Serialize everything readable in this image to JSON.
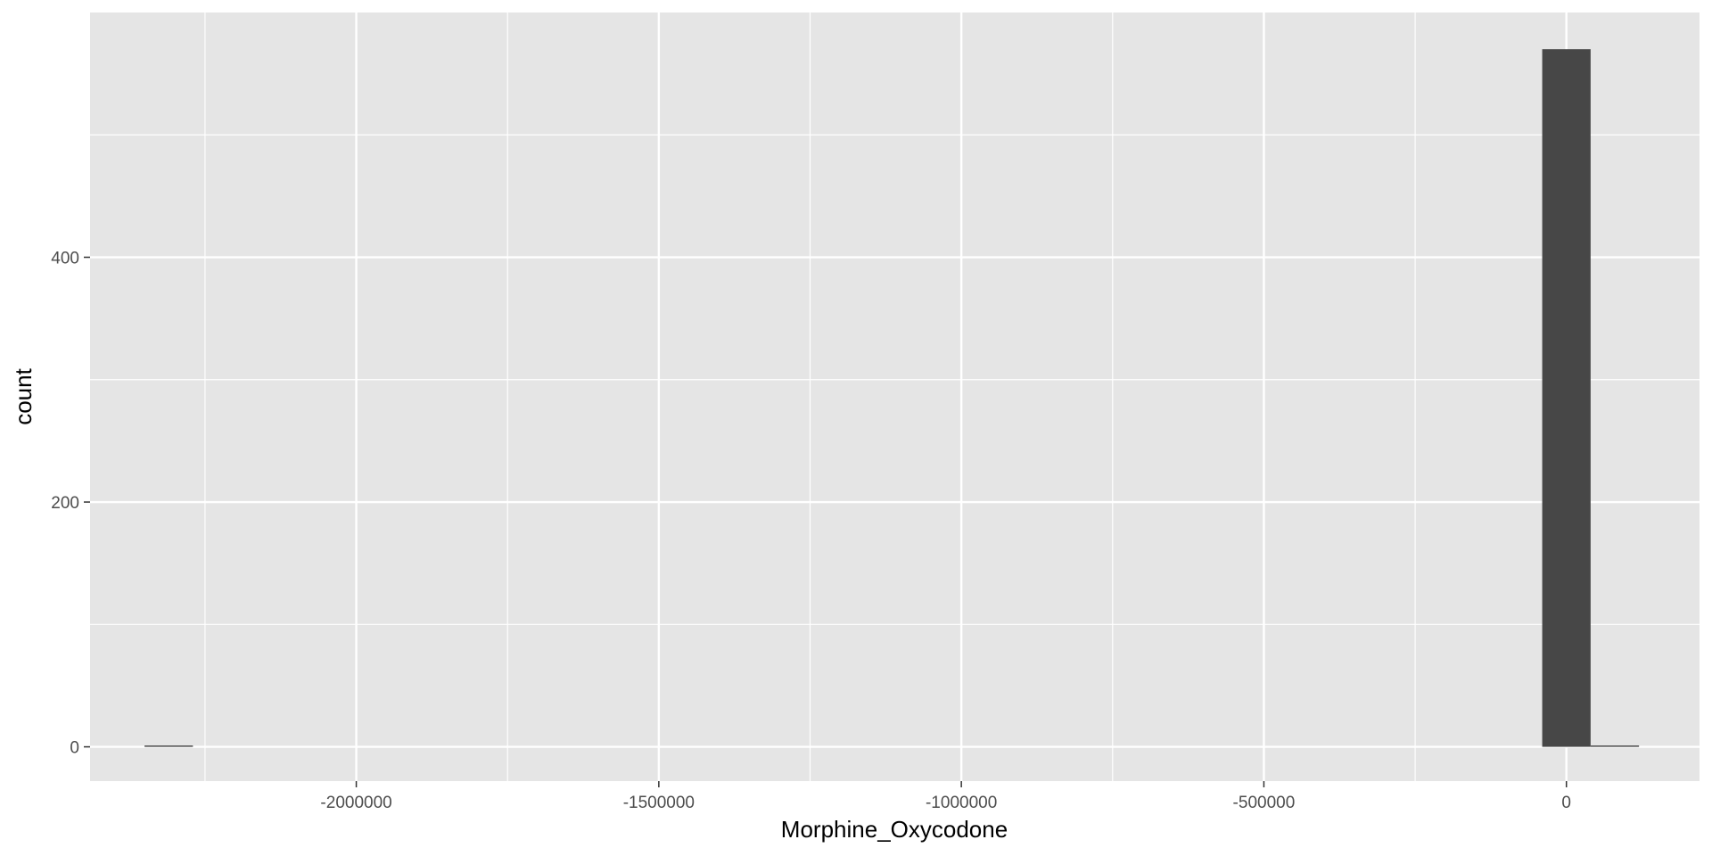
{
  "chart_data": {
    "type": "bar",
    "subtype": "histogram",
    "xlabel": "Morphine_Oxycodone",
    "ylabel": "count",
    "xlim": [
      -2440000,
      220000
    ],
    "ylim": [
      -28,
      600
    ],
    "x_ticks": [
      {
        "value": -2000000,
        "label": "-2000000"
      },
      {
        "value": -1500000,
        "label": "-1500000"
      },
      {
        "value": -1000000,
        "label": "-1000000"
      },
      {
        "value": -500000,
        "label": "-500000"
      },
      {
        "value": 0,
        "label": "0"
      }
    ],
    "x_minor_gridlines": [
      -2250000,
      -1750000,
      -1250000,
      -750000,
      -250000
    ],
    "y_ticks": [
      {
        "value": 0,
        "label": "0"
      },
      {
        "value": 200,
        "label": "200"
      },
      {
        "value": 400,
        "label": "400"
      }
    ],
    "y_minor_gridlines": [
      100,
      300,
      500
    ],
    "bins": [
      {
        "x0": -2350000,
        "x1": -2270000,
        "count": 1
      },
      {
        "x0": -40000,
        "x1": 40000,
        "count": 570
      },
      {
        "x0": 40000,
        "x1": 120000,
        "count": 1
      }
    ],
    "grid": true,
    "legend": "none",
    "colors": {
      "panel": "#e5e5e5",
      "grid": "#ffffff",
      "bar": "#474747",
      "tick_text": "#4d4d4d",
      "axis_text": "#000000"
    }
  }
}
